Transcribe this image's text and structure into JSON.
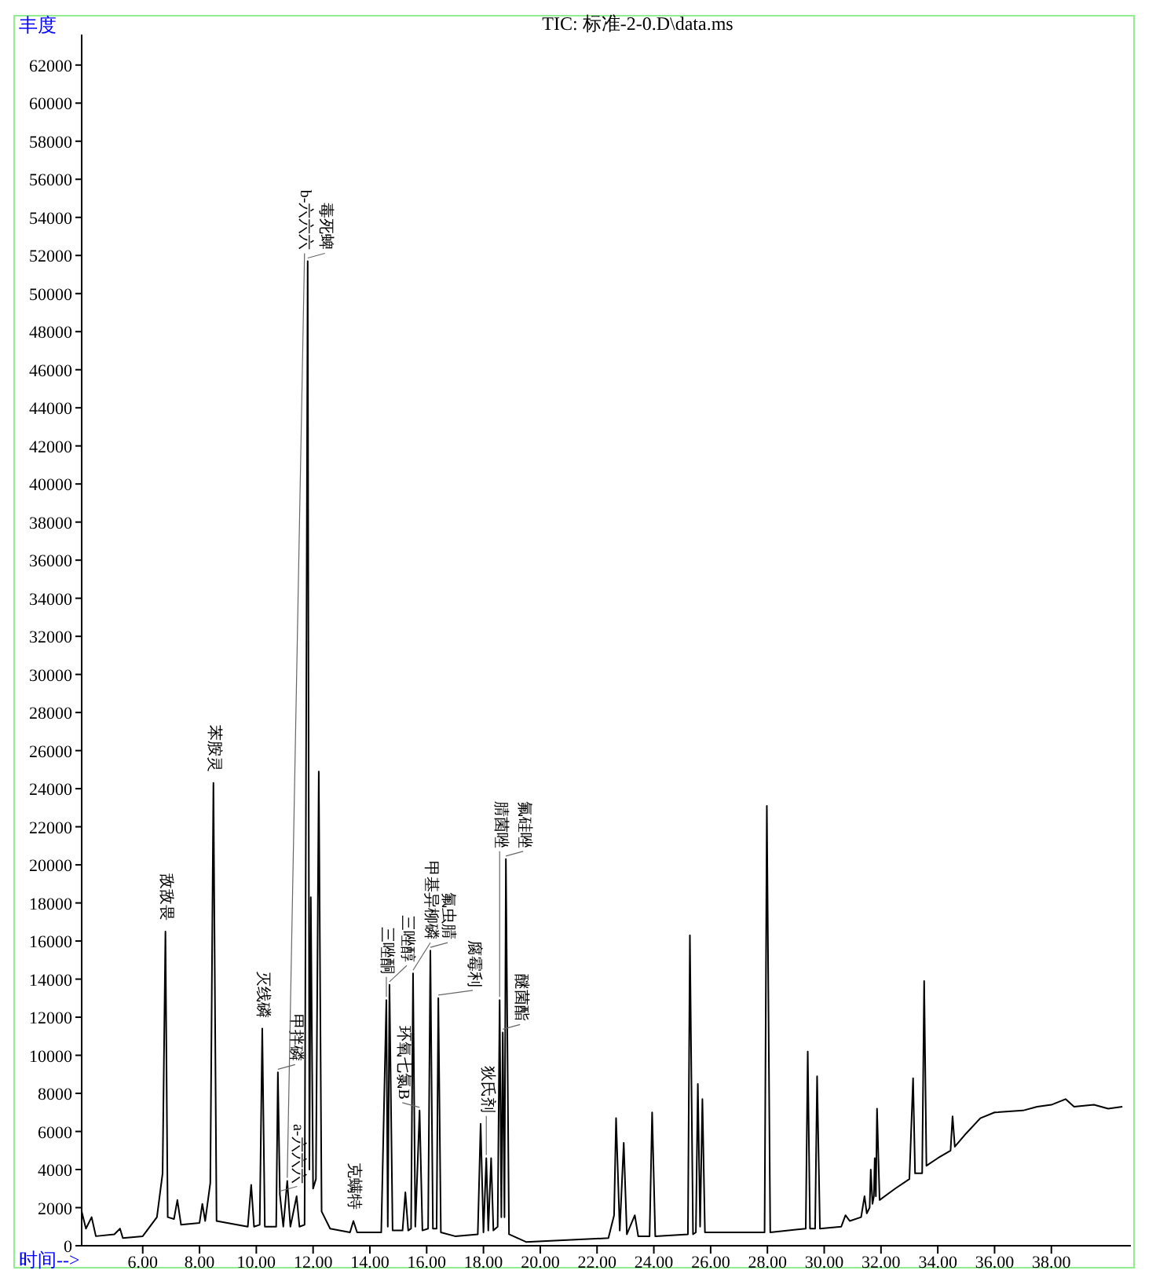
{
  "chart_data": {
    "type": "line",
    "title": "TIC: 标准-2-0.D\\data.ms",
    "xlabel": "时间-->",
    "ylabel": "丰度",
    "xlim": [
      3.85,
      40.8
    ],
    "ylim": [
      0,
      63600
    ],
    "xticks": [
      {
        "value": 6,
        "label": "6.00"
      },
      {
        "value": 8,
        "label": "8.00"
      },
      {
        "value": 10,
        "label": "10.00"
      },
      {
        "value": 12,
        "label": "12.00"
      },
      {
        "value": 14,
        "label": "14.00"
      },
      {
        "value": 16,
        "label": "16.00"
      },
      {
        "value": 18,
        "label": "18.00"
      },
      {
        "value": 20,
        "label": "20.00"
      },
      {
        "value": 22,
        "label": "22.00"
      },
      {
        "value": 24,
        "label": "24.00"
      },
      {
        "value": 26,
        "label": "26.00"
      },
      {
        "value": 28,
        "label": "28.00"
      },
      {
        "value": 30,
        "label": "30.00"
      },
      {
        "value": 32,
        "label": "32.00"
      },
      {
        "value": 34,
        "label": "34.00"
      },
      {
        "value": 36,
        "label": "36.00"
      },
      {
        "value": 38,
        "label": "38.00"
      }
    ],
    "yticks": [
      0,
      2000,
      4000,
      6000,
      8000,
      10000,
      12000,
      14000,
      16000,
      18000,
      20000,
      22000,
      24000,
      26000,
      28000,
      30000,
      32000,
      34000,
      36000,
      38000,
      40000,
      42000,
      44000,
      46000,
      48000,
      50000,
      52000,
      54000,
      56000,
      58000,
      60000,
      62000
    ],
    "series": [
      {
        "color": "#000000",
        "x": [
          3.85,
          4.0,
          4.2,
          4.35,
          5.0,
          5.2,
          5.3,
          6.0,
          6.5,
          6.7,
          6.8,
          6.88,
          7.1,
          7.22,
          7.35,
          8.0,
          8.1,
          8.2,
          8.38,
          8.49,
          8.6,
          9.7,
          9.82,
          9.92,
          10.12,
          10.21,
          10.3,
          10.7,
          10.76,
          10.83,
          10.95,
          11.09,
          11.2,
          11.42,
          11.52,
          11.7,
          11.81,
          11.87,
          11.92,
          12.0,
          12.1,
          12.2,
          12.3,
          12.6,
          13.3,
          13.42,
          13.55,
          14.4,
          14.58,
          14.63,
          14.69,
          14.8,
          15.15,
          15.25,
          15.35,
          15.45,
          15.52,
          15.6,
          15.75,
          15.85,
          16.05,
          16.13,
          16.22,
          16.35,
          16.41,
          16.5,
          17.0,
          17.8,
          17.9,
          18.0,
          18.1,
          18.17,
          18.27,
          18.35,
          18.5,
          18.57,
          18.63,
          18.68,
          18.74,
          18.79,
          18.9,
          19.5,
          22.4,
          22.6,
          22.67,
          22.8,
          22.94,
          23.05,
          23.33,
          23.45,
          23.85,
          23.94,
          24.05,
          25.2,
          25.27,
          25.38,
          25.48,
          25.55,
          25.63,
          25.71,
          25.8,
          27.9,
          27.98,
          28.1,
          29.35,
          29.42,
          29.5,
          29.68,
          29.75,
          29.85,
          30.6,
          30.75,
          30.9,
          31.3,
          31.42,
          31.5,
          31.6,
          31.64,
          31.7,
          31.75,
          31.78,
          31.82,
          31.86,
          31.95,
          32.5,
          33.0,
          33.13,
          33.2,
          33.45,
          33.52,
          33.6,
          34.0,
          34.45,
          34.52,
          34.6,
          35.0,
          35.5,
          36.0,
          37.0,
          37.5,
          38.0,
          38.5,
          38.8,
          39.5,
          40.0,
          40.5
        ],
        "values": [
          1800,
          900,
          1500,
          500,
          600,
          900,
          400,
          500,
          1500,
          3800,
          16500,
          1500,
          1400,
          2400,
          1100,
          1200,
          2200,
          1300,
          3300,
          24300,
          1300,
          1000,
          3200,
          1000,
          1100,
          11400,
          1000,
          1000,
          9100,
          2700,
          1000,
          3400,
          1000,
          2600,
          1000,
          1100,
          51700,
          4000,
          18300,
          3000,
          3500,
          24900,
          1800,
          900,
          700,
          1300,
          700,
          700,
          12900,
          1000,
          13700,
          800,
          800,
          2800,
          800,
          900,
          14300,
          1000,
          7100,
          800,
          900,
          15500,
          900,
          900,
          13000,
          700,
          500,
          600,
          6400,
          700,
          4600,
          800,
          4600,
          800,
          1000,
          12900,
          1500,
          11200,
          1500,
          20300,
          600,
          200,
          400,
          1600,
          6700,
          800,
          5400,
          600,
          1600,
          500,
          500,
          7000,
          500,
          600,
          16300,
          600,
          700,
          8500,
          1000,
          7700,
          700,
          700,
          23100,
          700,
          900,
          10200,
          900,
          900,
          8900,
          900,
          1000,
          1600,
          1300,
          1500,
          2600,
          1700,
          2000,
          4000,
          2200,
          2600,
          4600,
          2600,
          7200,
          2400,
          3000,
          3500,
          8800,
          3800,
          3800,
          13900,
          4200,
          4600,
          5000,
          6800,
          5200,
          5900,
          6700,
          7000,
          7100,
          7300,
          7400,
          7700,
          7300,
          7400,
          7200,
          7300
        ]
      }
    ],
    "annotations": [
      {
        "text": "敌敌畏",
        "x": 6.8,
        "y": 16500
      },
      {
        "text": "苯胺灵",
        "x": 8.49,
        "y": 24300
      },
      {
        "text": "灭线磷",
        "x": 10.21,
        "y": 11400
      },
      {
        "text": "甲拌磷",
        "x": 10.76,
        "y": 9100
      },
      {
        "text": "a-六六六",
        "x": 10.83,
        "y": 2700
      },
      {
        "text": "b-六六六",
        "x": 11.09,
        "y": 3400
      },
      {
        "text": "毒死蜱",
        "x": 11.81,
        "y": 51700
      },
      {
        "text": "克螨特",
        "x": 13.42,
        "y": 1300
      },
      {
        "text": "三唑酮",
        "x": 14.58,
        "y": 12900
      },
      {
        "text": "三唑醇",
        "x": 14.69,
        "y": 13700
      },
      {
        "text": "甲基异柳磷",
        "x": 15.52,
        "y": 14300
      },
      {
        "text": "环氧七氯B",
        "x": 15.75,
        "y": 7100
      },
      {
        "text": "氟虫腈",
        "x": 16.13,
        "y": 15500
      },
      {
        "text": "腐霉利",
        "x": 16.41,
        "y": 13000
      },
      {
        "text": "狄氏剂",
        "x": 18.1,
        "y": 4600
      },
      {
        "text": "腈菌唑",
        "x": 18.57,
        "y": 12900
      },
      {
        "text": "醚菌酯",
        "x": 18.68,
        "y": 11200
      },
      {
        "text": "氟硅唑",
        "x": 18.79,
        "y": 20300
      }
    ]
  }
}
